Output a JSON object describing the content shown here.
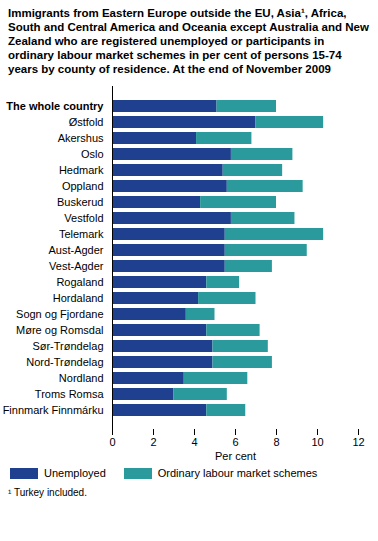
{
  "chart_data": {
    "type": "bar",
    "orientation": "horizontal",
    "stacked": true,
    "title": "Immigrants from  Eastern Europe outside the EU, Asia¹, Africa, South and Central America and Oceania except Australia and New Zealand who are registered unemployed or participants in ordinary labour market schemes in per cent of persons 15-74 years by county of residence. At the end of November 2009",
    "note": "¹ Turkey included.",
    "x_label": "Per cent",
    "categories": [
      "The whole country",
      "Østfold",
      "Akershus",
      "Oslo",
      "Hedmark",
      "Oppland",
      "Buskerud",
      "Vestfold",
      "Telemark",
      "Aust-Agder",
      "Vest-Agder",
      "Rogaland",
      "Hordaland",
      "Sogn og Fjordane",
      "Møre og Romsdal",
      "Sør-Trøndelag",
      "Nord-Trøndelag",
      "Nordland",
      "Troms Romsa",
      "Finnmark Finnmárku"
    ],
    "series": [
      {
        "name": "Unemployed",
        "color": "#1f3f8f",
        "values": [
          5.1,
          7.0,
          4.1,
          5.8,
          5.4,
          5.6,
          4.3,
          5.8,
          5.5,
          5.5,
          5.5,
          4.6,
          4.2,
          3.6,
          4.6,
          4.9,
          4.9,
          3.5,
          3.0,
          4.6
        ]
      },
      {
        "name": "Ordinary labour market schemes",
        "color": "#2a9a9c",
        "values": [
          2.9,
          3.3,
          2.7,
          3.0,
          2.9,
          3.7,
          3.7,
          3.1,
          4.8,
          4.0,
          2.3,
          1.6,
          2.8,
          1.4,
          2.6,
          2.7,
          2.9,
          3.1,
          2.6,
          1.9
        ]
      }
    ],
    "xlim": [
      0,
      12
    ],
    "xticks": [
      0,
      2,
      4,
      6,
      8,
      10,
      12
    ],
    "grid": false,
    "legend": "bottom"
  }
}
